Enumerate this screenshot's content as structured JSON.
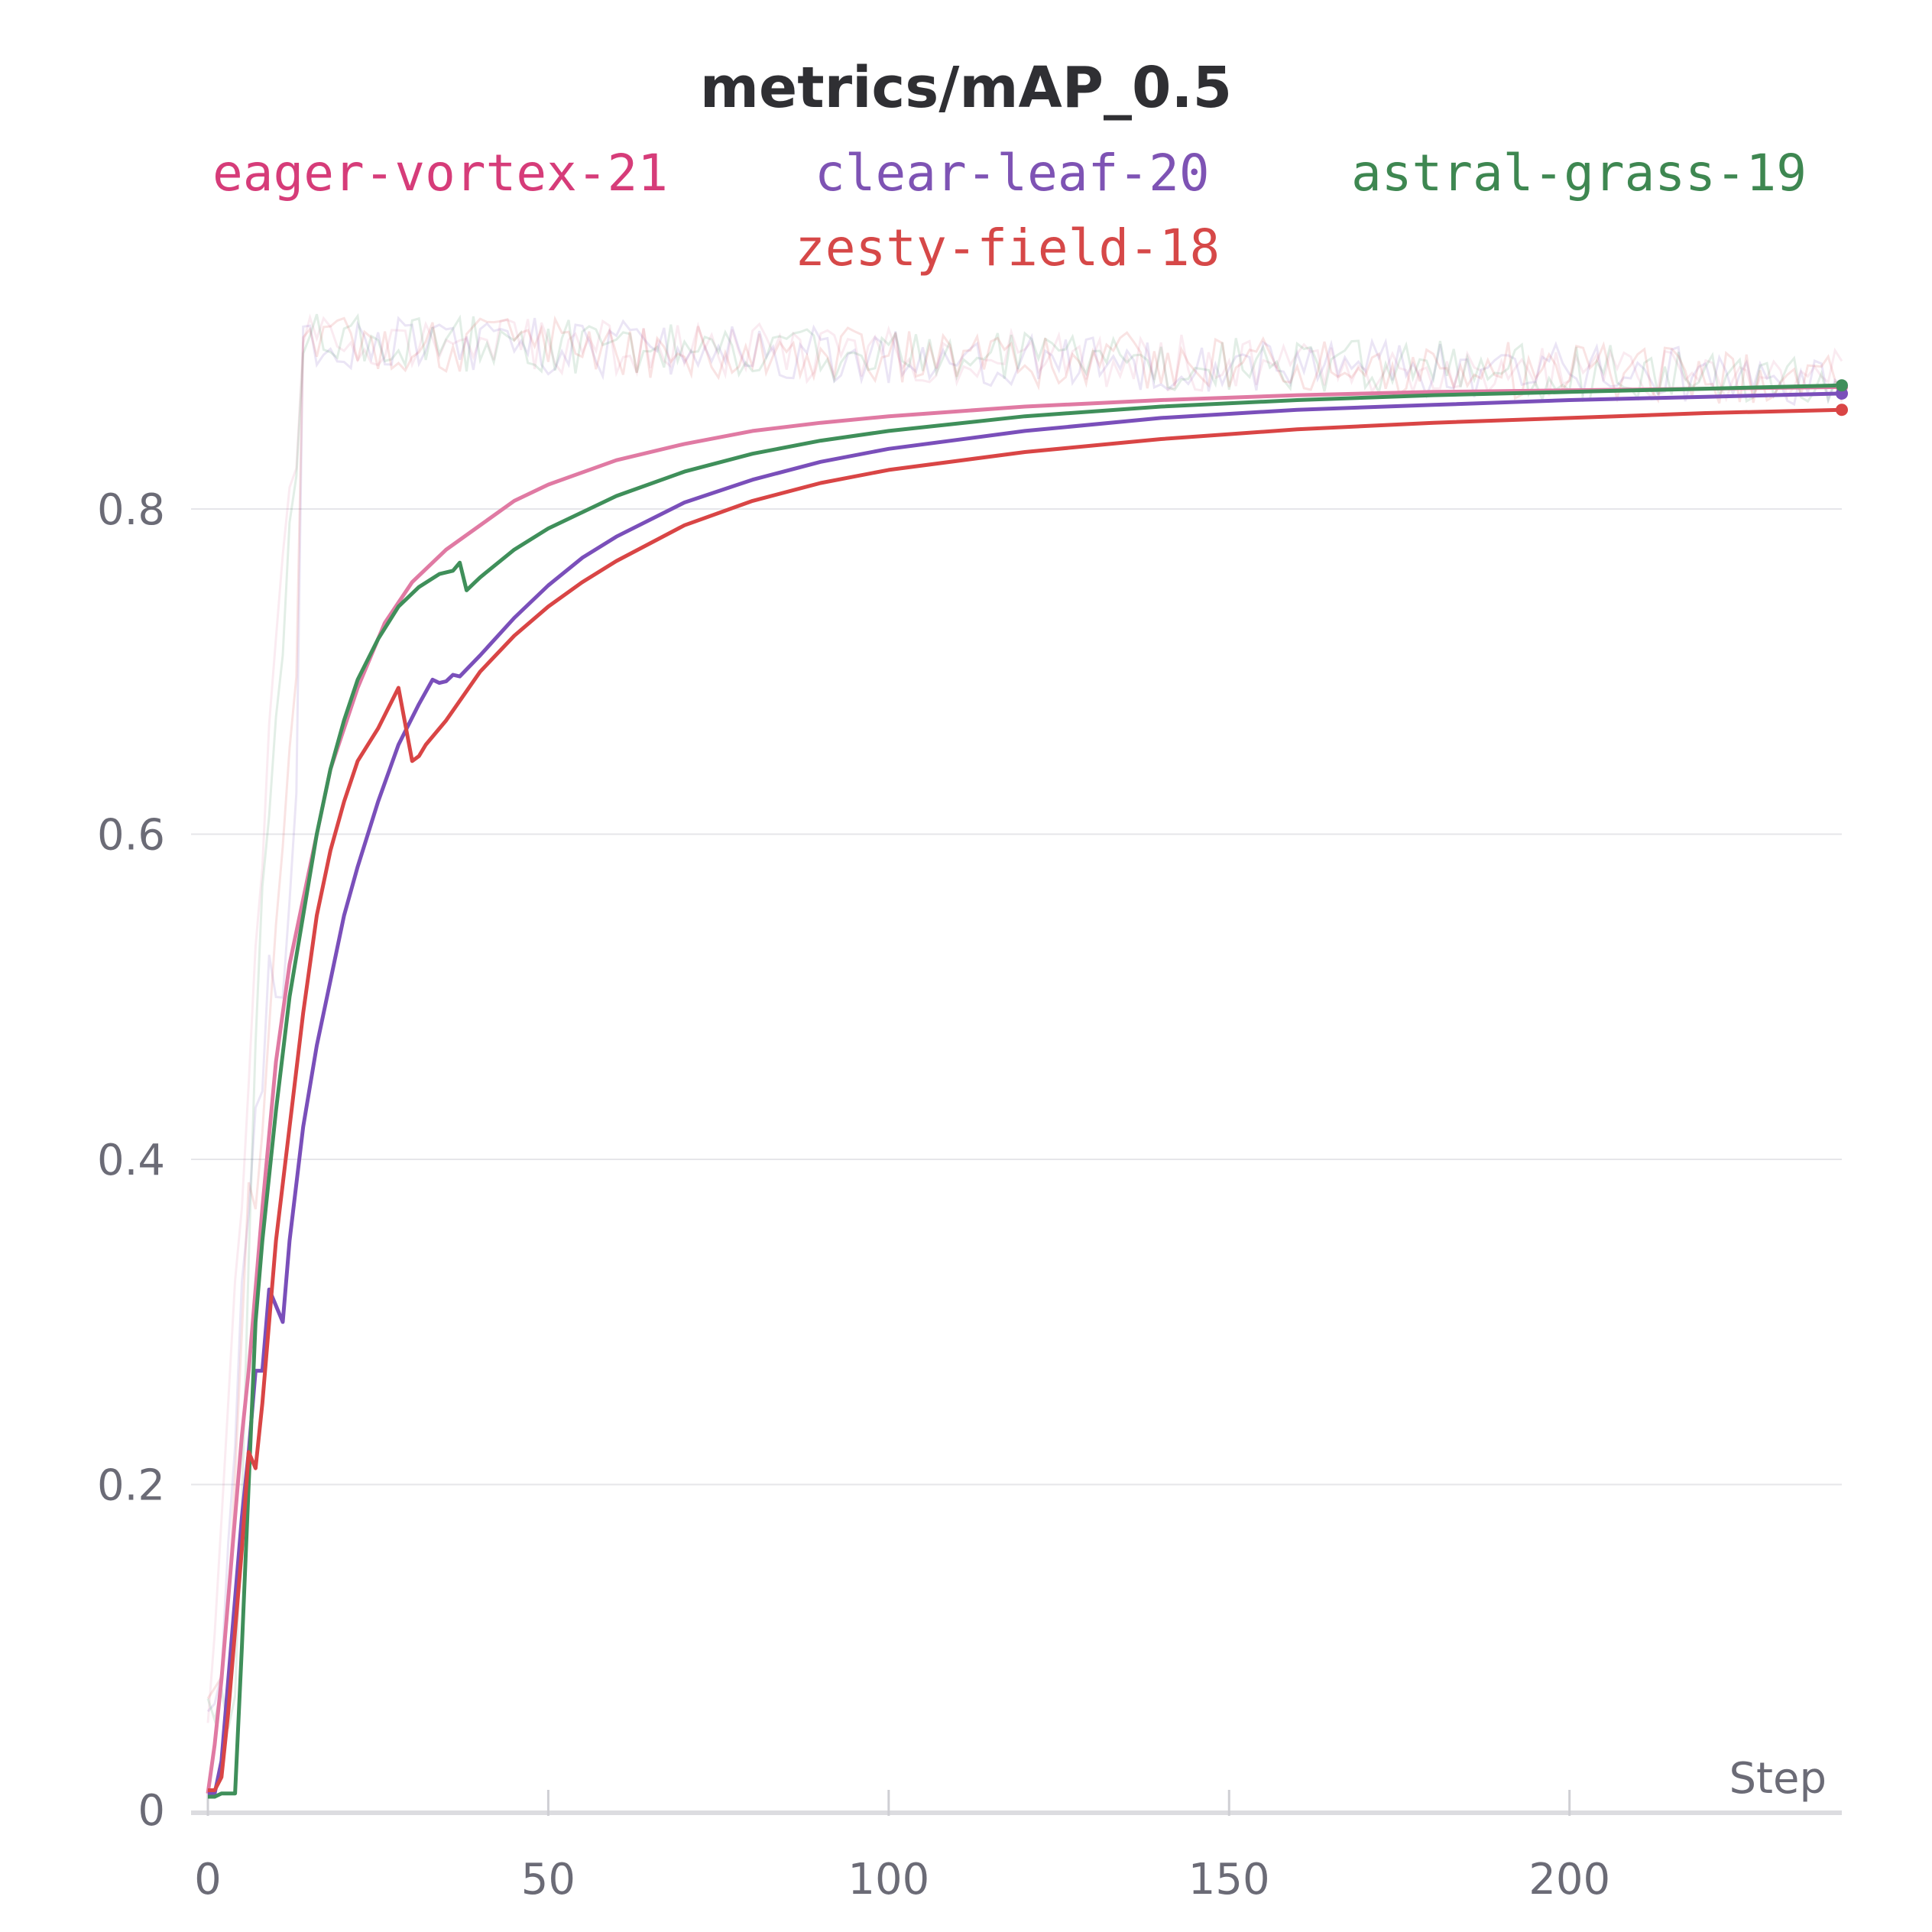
{
  "chart_data": {
    "type": "line",
    "title": "metrics/mAP_0.5",
    "xlabel": "Step",
    "ylabel": "",
    "xlim": [
      0,
      240
    ],
    "ylim": [
      0,
      0.92
    ],
    "x_ticks": [
      "0",
      "50",
      "100",
      "150",
      "200"
    ],
    "y_ticks": [
      "0",
      "0.2",
      "0.4",
      "0.6",
      "0.8"
    ],
    "grid": true,
    "legend_position": "top",
    "series": [
      {
        "name": "eager-vortex-21",
        "color": "#d63c79",
        "line_color": "#e07aa3",
        "x": [
          0,
          1,
          2,
          3,
          4,
          5,
          6,
          8,
          10,
          12,
          15,
          18,
          22,
          26,
          30,
          35,
          40,
          45,
          50,
          60,
          70,
          80,
          90,
          100,
          120,
          140,
          160,
          180,
          200,
          220,
          240
        ],
        "y": [
          0.01,
          0.04,
          0.08,
          0.13,
          0.18,
          0.23,
          0.27,
          0.37,
          0.46,
          0.52,
          0.58,
          0.64,
          0.69,
          0.73,
          0.755,
          0.775,
          0.79,
          0.805,
          0.815,
          0.83,
          0.84,
          0.848,
          0.853,
          0.857,
          0.863,
          0.867,
          0.87,
          0.872,
          0.873,
          0.874,
          0.875
        ]
      },
      {
        "name": "clear-leaf-20",
        "color": "#7e53b4",
        "line_color": "#7a4fba",
        "x": [
          0,
          1,
          2,
          3,
          4,
          5,
          6,
          7,
          8,
          9,
          10,
          11,
          12,
          14,
          16,
          18,
          20,
          22,
          25,
          28,
          31,
          33,
          34,
          35,
          36,
          37,
          40,
          45,
          50,
          55,
          60,
          70,
          80,
          90,
          100,
          120,
          140,
          160,
          180,
          200,
          220,
          240
        ],
        "y": [
          0.01,
          0.01,
          0.03,
          0.08,
          0.13,
          0.18,
          0.22,
          0.27,
          0.27,
          0.32,
          0.31,
          0.3,
          0.35,
          0.42,
          0.47,
          0.51,
          0.55,
          0.58,
          0.62,
          0.655,
          0.68,
          0.695,
          0.693,
          0.694,
          0.698,
          0.697,
          0.71,
          0.733,
          0.753,
          0.77,
          0.783,
          0.804,
          0.818,
          0.829,
          0.837,
          0.848,
          0.856,
          0.861,
          0.864,
          0.867,
          0.869,
          0.871
        ]
      },
      {
        "name": "astral-grass-19",
        "color": "#3e8751",
        "line_color": "#3f8f5a",
        "x": [
          0,
          1,
          2,
          3,
          4,
          5,
          6,
          7,
          8,
          10,
          12,
          14,
          16,
          18,
          20,
          22,
          25,
          28,
          31,
          34,
          36,
          37,
          38,
          40,
          45,
          50,
          60,
          70,
          80,
          90,
          100,
          120,
          140,
          160,
          180,
          200,
          220,
          240
        ],
        "y": [
          0.008,
          0.008,
          0.01,
          0.01,
          0.01,
          0.1,
          0.2,
          0.3,
          0.35,
          0.43,
          0.5,
          0.55,
          0.6,
          0.64,
          0.67,
          0.695,
          0.72,
          0.74,
          0.752,
          0.76,
          0.762,
          0.767,
          0.75,
          0.758,
          0.775,
          0.788,
          0.808,
          0.823,
          0.834,
          0.842,
          0.848,
          0.857,
          0.863,
          0.867,
          0.87,
          0.872,
          0.874,
          0.876
        ]
      },
      {
        "name": "zesty-field-18",
        "color": "#d64848",
        "line_color": "#d94545",
        "x": [
          0,
          1,
          2,
          3,
          4,
          5,
          6,
          7,
          8,
          10,
          12,
          14,
          16,
          18,
          20,
          22,
          25,
          28,
          30,
          31,
          32,
          35,
          40,
          45,
          50,
          55,
          60,
          70,
          80,
          90,
          100,
          120,
          140,
          160,
          180,
          200,
          220,
          240
        ],
        "y": [
          0.012,
          0.012,
          0.02,
          0.06,
          0.11,
          0.16,
          0.22,
          0.21,
          0.25,
          0.35,
          0.42,
          0.49,
          0.55,
          0.59,
          0.62,
          0.645,
          0.665,
          0.69,
          0.645,
          0.648,
          0.655,
          0.67,
          0.7,
          0.722,
          0.74,
          0.755,
          0.768,
          0.79,
          0.805,
          0.816,
          0.824,
          0.835,
          0.843,
          0.849,
          0.853,
          0.856,
          0.859,
          0.861
        ]
      }
    ]
  }
}
